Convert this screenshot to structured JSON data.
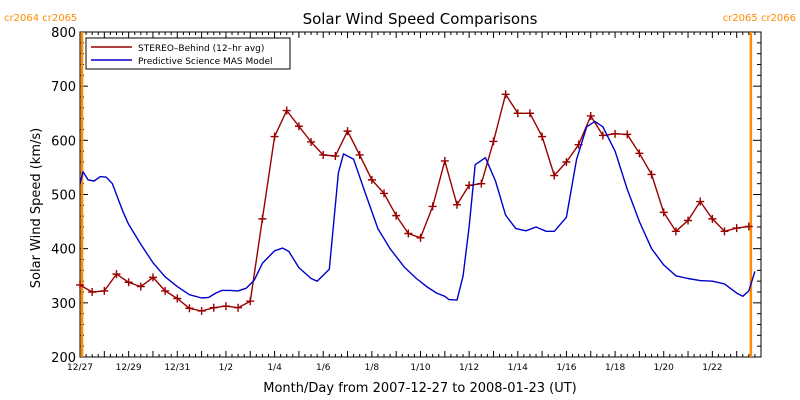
{
  "chart_data": {
    "type": "line",
    "title": "Solar Wind Speed Comparisons",
    "xlabel": "Month/Day from 2007-12-27 to 2008-01-23 (UT)",
    "ylabel": "Solar Wind Speed (km/s)",
    "xlim": [
      "2007-12-27 00:00",
      "2008-01-24 00:00"
    ],
    "ylim": [
      200,
      800
    ],
    "y_ticks": [
      200,
      300,
      400,
      500,
      600,
      700,
      800
    ],
    "x_tick_labels": [
      "12/27",
      "12/29",
      "12/31",
      "1/2",
      "1/4",
      "1/6",
      "1/8",
      "1/10",
      "1/12",
      "1/14",
      "1/16",
      "1/18",
      "1/20",
      "1/22"
    ],
    "x_tick_dates": [
      "2007-12-27",
      "2007-12-29",
      "2007-12-31",
      "2008-01-02",
      "2008-01-04",
      "2008-01-06",
      "2008-01-08",
      "2008-01-10",
      "2008-01-12",
      "2008-01-14",
      "2008-01-16",
      "2008-01-18",
      "2008-01-20",
      "2008-01-22"
    ],
    "legend_placement": "top-left",
    "series": [
      {
        "name": "STEREO–Behind (12–hr avg)",
        "color": "#990000",
        "marker": "plus",
        "x": [
          "2007-12-27 00:00",
          "2007-12-27 12:00",
          "2007-12-28 00:00",
          "2007-12-28 12:00",
          "2007-12-29 00:00",
          "2007-12-29 12:00",
          "2007-12-30 00:00",
          "2007-12-30 12:00",
          "2007-12-31 00:00",
          "2007-12-31 12:00",
          "2008-01-01 00:00",
          "2008-01-01 12:00",
          "2008-01-02 00:00",
          "2008-01-02 12:00",
          "2008-01-03 00:00",
          "2008-01-03 12:00",
          "2008-01-04 00:00",
          "2008-01-04 12:00",
          "2008-01-05 00:00",
          "2008-01-05 12:00",
          "2008-01-06 00:00",
          "2008-01-06 12:00",
          "2008-01-07 00:00",
          "2008-01-07 12:00",
          "2008-01-08 00:00",
          "2008-01-08 12:00",
          "2008-01-09 00:00",
          "2008-01-09 12:00",
          "2008-01-10 00:00",
          "2008-01-10 12:00",
          "2008-01-11 00:00",
          "2008-01-11 12:00",
          "2008-01-12 00:00",
          "2008-01-12 12:00",
          "2008-01-13 00:00",
          "2008-01-13 12:00",
          "2008-01-14 00:00",
          "2008-01-14 12:00",
          "2008-01-15 00:00",
          "2008-01-15 12:00",
          "2008-01-16 00:00",
          "2008-01-16 12:00",
          "2008-01-17 00:00",
          "2008-01-17 12:00",
          "2008-01-18 00:00",
          "2008-01-18 12:00",
          "2008-01-19 00:00",
          "2008-01-19 12:00",
          "2008-01-20 00:00",
          "2008-01-20 12:00",
          "2008-01-21 00:00",
          "2008-01-21 12:00",
          "2008-01-22 00:00",
          "2008-01-22 12:00",
          "2008-01-23 00:00",
          "2008-01-23 12:00"
        ],
        "y": [
          333,
          320,
          322,
          353,
          338,
          330,
          347,
          322,
          308,
          290,
          285,
          291,
          294,
          291,
          303,
          455,
          607,
          655,
          626,
          597,
          573,
          571,
          617,
          573,
          527,
          502,
          461,
          428,
          420,
          478,
          562,
          481,
          517,
          520,
          598,
          685,
          650,
          650,
          607,
          535,
          560,
          592,
          645,
          609,
          612,
          611,
          576,
          537,
          467,
          432,
          452,
          487,
          455,
          432,
          438,
          441
        ]
      },
      {
        "name": "Predictive Science MAS Model",
        "color": "#0000cc",
        "marker": "none",
        "x": [
          "2007-12-27 00:00",
          "2007-12-27 03:00",
          "2007-12-27 08:00",
          "2007-12-27 14:00",
          "2007-12-27 20:00",
          "2007-12-28 02:00",
          "2007-12-28 08:00",
          "2007-12-28 13:00",
          "2007-12-28 18:00",
          "2007-12-29 00:00",
          "2007-12-29 12:00",
          "2007-12-30 00:00",
          "2007-12-30 12:00",
          "2007-12-31 00:00",
          "2007-12-31 12:00",
          "2008-01-01 00:00",
          "2008-01-01 07:00",
          "2008-01-01 14:00",
          "2008-01-01 20:00",
          "2008-01-02 04:00",
          "2008-01-02 12:00",
          "2008-01-02 20:00",
          "2008-01-03 04:00",
          "2008-01-03 12:00",
          "2008-01-04 00:00",
          "2008-01-04 08:00",
          "2008-01-04 14:00",
          "2008-01-05 00:00",
          "2008-01-05 12:00",
          "2008-01-05 18:00",
          "2008-01-06 06:00",
          "2008-01-06 15:00",
          "2008-01-06 20:00",
          "2008-01-07 06:00",
          "2008-01-07 18:00",
          "2008-01-08 06:00",
          "2008-01-08 18:00",
          "2008-01-09 08:00",
          "2008-01-09 20:00",
          "2008-01-10 06:00",
          "2008-01-10 16:00",
          "2008-01-11 00:00",
          "2008-01-11 04:00",
          "2008-01-11 12:00",
          "2008-01-11 18:00",
          "2008-01-12 00:00",
          "2008-01-12 06:00",
          "2008-01-12 16:00",
          "2008-01-13 02:00",
          "2008-01-13 12:00",
          "2008-01-13 22:00",
          "2008-01-14 08:00",
          "2008-01-14 18:00",
          "2008-01-15 04:00",
          "2008-01-15 12:00",
          "2008-01-16 00:00",
          "2008-01-16 10:00",
          "2008-01-16 20:00",
          "2008-01-17 04:00",
          "2008-01-17 12:00",
          "2008-01-18 00:00",
          "2008-01-18 12:00",
          "2008-01-19 00:00",
          "2008-01-19 12:00",
          "2008-01-20 00:00",
          "2008-01-20 12:00",
          "2008-01-21 00:00",
          "2008-01-21 12:00",
          "2008-01-22 00:00",
          "2008-01-22 12:00",
          "2008-01-23 00:00",
          "2008-01-23 06:00",
          "2008-01-23 12:00",
          "2008-01-23 18:00"
        ],
        "y": [
          520,
          542,
          527,
          525,
          533,
          532,
          520,
          495,
          470,
          445,
          408,
          374,
          348,
          330,
          315,
          309,
          310,
          318,
          323,
          323,
          322,
          327,
          342,
          373,
          396,
          401,
          395,
          365,
          345,
          340,
          362,
          540,
          575,
          565,
          500,
          437,
          400,
          366,
          345,
          330,
          318,
          312,
          306,
          305,
          350,
          440,
          555,
          568,
          525,
          462,
          437,
          433,
          440,
          432,
          432,
          458,
          565,
          625,
          635,
          625,
          580,
          510,
          450,
          400,
          370,
          350,
          345,
          341,
          340,
          335,
          318,
          312,
          322,
          358
        ]
      }
    ],
    "carrington_markers": [
      {
        "labels": [
          "cr2064",
          "cr2065"
        ],
        "x": "2007-12-27 02:00",
        "color": "#ff8c00"
      },
      {
        "labels": [
          "cr2065",
          "cr2066"
        ],
        "x": "2008-01-23 14:00",
        "color": "#ff8c00"
      }
    ]
  }
}
